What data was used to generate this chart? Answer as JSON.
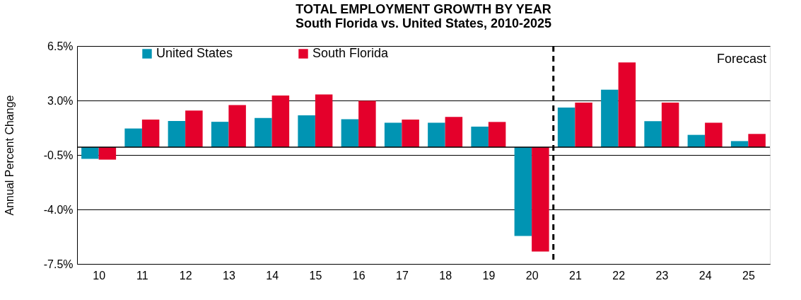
{
  "chart_data": {
    "type": "bar",
    "title": "TOTAL EMPLOYMENT GROWTH BY YEAR",
    "subtitle": "South Florida vs. United States, 2010-2025",
    "ylabel": "Annual Percent Change",
    "x": [
      10,
      11,
      12,
      13,
      14,
      15,
      16,
      17,
      18,
      19,
      20,
      21,
      22,
      23,
      24,
      25
    ],
    "xlim": [
      9.5,
      25.5
    ],
    "xticks": [
      10,
      11,
      12,
      13,
      14,
      15,
      16,
      17,
      18,
      19,
      20,
      21,
      22,
      23,
      24,
      25
    ],
    "series": [
      {
        "name": "United States",
        "color": "#0094b3",
        "values": [
          -0.75,
          1.2,
          1.68,
          1.63,
          1.88,
          2.04,
          1.79,
          1.57,
          1.57,
          1.32,
          -5.7,
          2.55,
          3.69,
          1.67,
          0.79,
          0.39
        ]
      },
      {
        "name": "South Florida",
        "color": "#e4002b",
        "values": [
          -0.8,
          1.77,
          2.35,
          2.71,
          3.32,
          3.39,
          2.98,
          1.77,
          1.94,
          1.62,
          -6.7,
          2.86,
          5.44,
          2.86,
          1.57,
          0.85
        ]
      }
    ],
    "ylim": [
      -7.5,
      6.5
    ],
    "yticks": [
      {
        "value": 6.5,
        "label": "6.5%"
      },
      {
        "value": 3.0,
        "label": "3.0%"
      },
      {
        "value": -0.5,
        "label": "-0.5%"
      },
      {
        "value": -4.0,
        "label": "-4.0%"
      },
      {
        "value": -7.5,
        "label": "-7.5%"
      }
    ],
    "grid": "y",
    "legend": "top left",
    "ref_lines": [
      {
        "axis": "x",
        "value": 20.5,
        "color": "#000000",
        "line_style": "dashed"
      },
      {
        "axis": "y",
        "value": 0,
        "color": "#000000",
        "line_style": "solid"
      }
    ],
    "annotations": [
      "Forecast"
    ]
  }
}
